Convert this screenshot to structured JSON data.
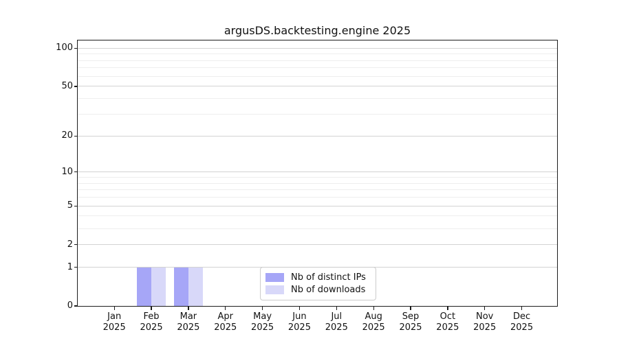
{
  "title": "argusDS.backtesting.engine 2025",
  "chart_data": {
    "type": "bar",
    "title": "argusDS.backtesting.engine 2025",
    "categories": [
      "Jan 2025",
      "Feb 2025",
      "Mar 2025",
      "Apr 2025",
      "May 2025",
      "Jun 2025",
      "Jul 2025",
      "Aug 2025",
      "Sep 2025",
      "Oct 2025",
      "Nov 2025",
      "Dec 2025"
    ],
    "series": [
      {
        "name": "Nb of distinct IPs",
        "color": "#a6a6f7",
        "values": [
          0,
          1,
          1,
          0,
          0,
          0,
          0,
          0,
          0,
          0,
          0,
          0
        ]
      },
      {
        "name": "Nb of downloads",
        "color": "#d8d8f9",
        "values": [
          0,
          1,
          1,
          0,
          0,
          0,
          0,
          0,
          0,
          0,
          0,
          0
        ]
      }
    ],
    "xlabel": "",
    "ylabel": "",
    "yscale": "log1p",
    "yticks": [
      0,
      1,
      2,
      5,
      10,
      20,
      50,
      100
    ],
    "minor_yticks": [
      3,
      4,
      6,
      7,
      8,
      9,
      30,
      40,
      60,
      70,
      80,
      90
    ],
    "ylim": [
      0,
      115
    ],
    "grid": "horizontal",
    "legend": {
      "position": "bottom-center",
      "items": [
        "Nb of distinct IPs",
        "Nb of downloads"
      ]
    }
  }
}
